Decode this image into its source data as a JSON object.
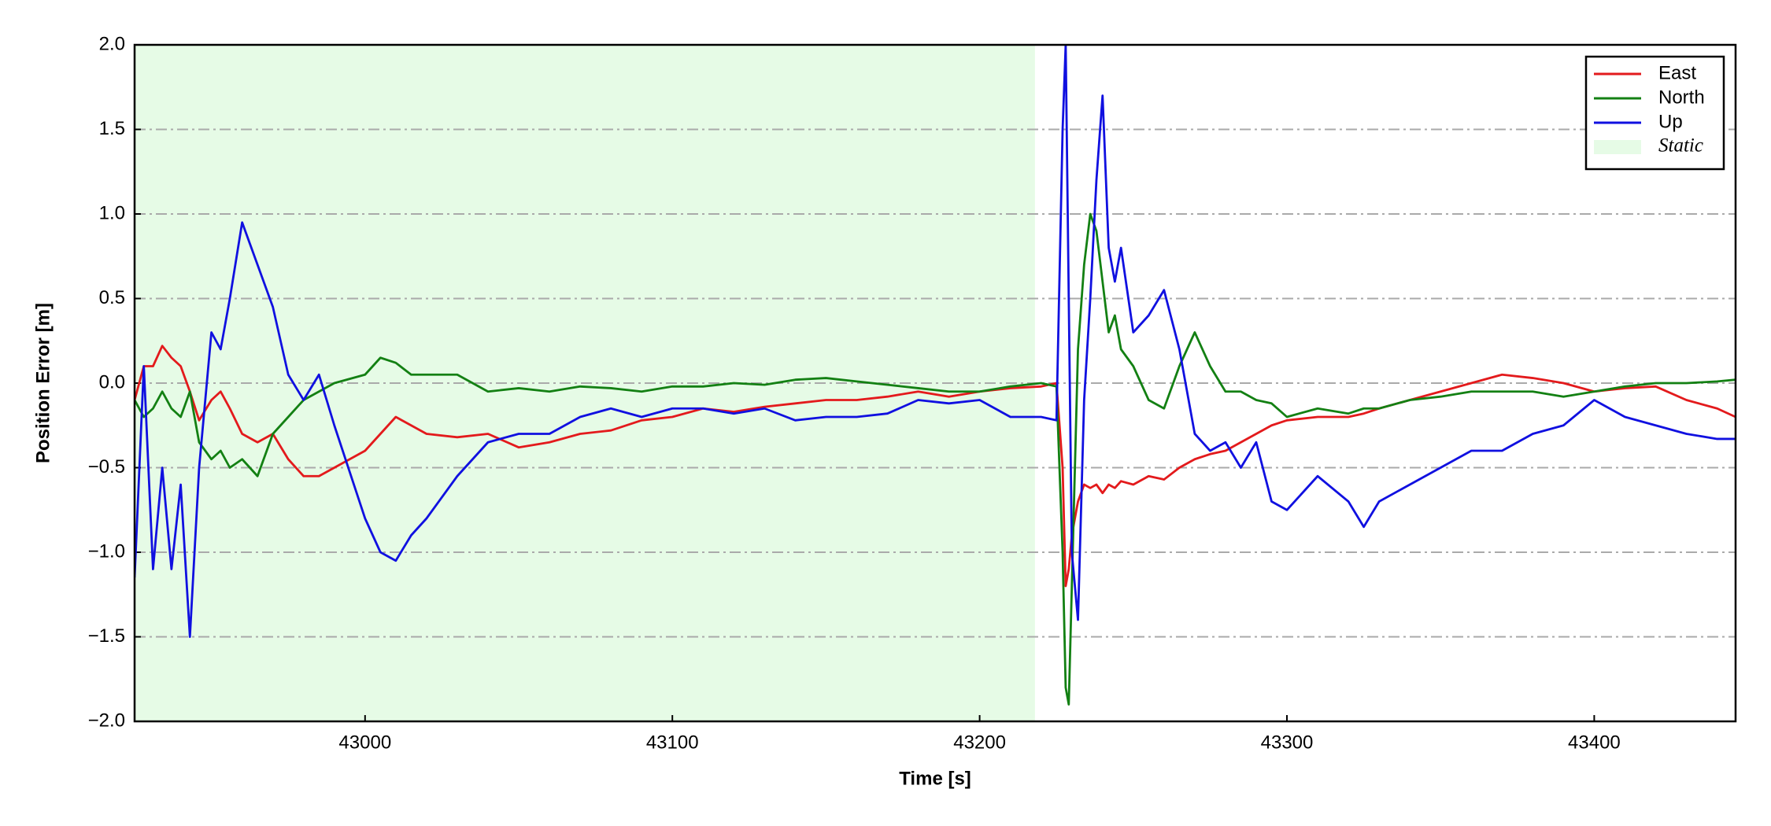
{
  "chart_data": {
    "type": "line",
    "xlabel": "Time [s]",
    "ylabel": "Position Error [m]",
    "xlim": [
      42925,
      43446
    ],
    "ylim": [
      -2.0,
      2.0
    ],
    "xticks": [
      43000,
      43100,
      43200,
      43300,
      43400
    ],
    "yticks": [
      {
        "value": -2.0,
        "label": "−2.0"
      },
      {
        "value": -1.5,
        "label": "−1.5"
      },
      {
        "value": -1.0,
        "label": "−1.0"
      },
      {
        "value": -0.5,
        "label": "−0.5"
      },
      {
        "value": 0.0,
        "label": "0.0"
      },
      {
        "value": 0.5,
        "label": "0.5"
      },
      {
        "value": 1.0,
        "label": "1.0"
      },
      {
        "value": 1.5,
        "label": "1.5"
      },
      {
        "value": 2.0,
        "label": "2.0"
      }
    ],
    "grid": true,
    "legend": "upper right",
    "shade": {
      "name": "Static",
      "color": "#e6fbe6",
      "x": [
        42925,
        43218
      ]
    },
    "x": [
      42925,
      42928,
      42931,
      42934,
      42937,
      42940,
      42943,
      42946,
      42950,
      42953,
      42956,
      42960,
      42965,
      42970,
      42975,
      42980,
      42985,
      42990,
      43000,
      43005,
      43010,
      43015,
      43020,
      43030,
      43040,
      43050,
      43060,
      43070,
      43080,
      43090,
      43100,
      43110,
      43120,
      43130,
      43140,
      43150,
      43160,
      43170,
      43180,
      43190,
      43200,
      43210,
      43220,
      43225,
      43227,
      43228,
      43229,
      43230,
      43232,
      43234,
      43236,
      43238,
      43240,
      43242,
      43244,
      43246,
      43250,
      43255,
      43260,
      43265,
      43270,
      43275,
      43280,
      43285,
      43290,
      43295,
      43300,
      43310,
      43320,
      43325,
      43330,
      43340,
      43350,
      43360,
      43370,
      43380,
      43390,
      43400,
      43410,
      43420,
      43430,
      43440,
      43446
    ],
    "series": [
      {
        "name": "East",
        "color": "#e31a1c",
        "values": [
          -0.1,
          0.1,
          0.1,
          0.22,
          0.15,
          0.1,
          -0.05,
          -0.22,
          -0.1,
          -0.05,
          -0.15,
          -0.3,
          -0.35,
          -0.3,
          -0.45,
          -0.55,
          -0.55,
          -0.5,
          -0.4,
          -0.3,
          -0.2,
          -0.25,
          -0.3,
          -0.32,
          -0.3,
          -0.38,
          -0.35,
          -0.3,
          -0.28,
          -0.22,
          -0.2,
          -0.15,
          -0.17,
          -0.14,
          -0.12,
          -0.1,
          -0.1,
          -0.08,
          -0.05,
          -0.08,
          -0.05,
          -0.03,
          -0.02,
          0,
          -0.5,
          -1.2,
          -1.1,
          -0.9,
          -0.7,
          -0.6,
          -0.62,
          -0.6,
          -0.65,
          -0.6,
          -0.62,
          -0.58,
          -0.6,
          -0.55,
          -0.57,
          -0.5,
          -0.45,
          -0.42,
          -0.4,
          -0.35,
          -0.3,
          -0.25,
          -0.22,
          -0.2,
          -0.2,
          -0.18,
          -0.15,
          -0.1,
          -0.05,
          0,
          0.05,
          0.03,
          0,
          -0.05,
          -0.03,
          -0.02,
          -0.1,
          -0.15,
          -0.2
        ]
      },
      {
        "name": "North",
        "color": "#138013",
        "values": [
          -0.1,
          -0.2,
          -0.15,
          -0.05,
          -0.15,
          -0.2,
          -0.05,
          -0.35,
          -0.45,
          -0.4,
          -0.5,
          -0.45,
          -0.55,
          -0.3,
          -0.2,
          -0.1,
          -0.05,
          0,
          0.05,
          0.15,
          0.12,
          0.05,
          0.05,
          0.05,
          -0.05,
          -0.03,
          -0.05,
          -0.02,
          -0.03,
          -0.05,
          -0.02,
          -0.02,
          0,
          -0.01,
          0.02,
          0.03,
          0.01,
          -0.01,
          -0.03,
          -0.05,
          -0.05,
          -0.02,
          0,
          -0.02,
          -1.0,
          -1.8,
          -1.9,
          -1.2,
          0.2,
          0.7,
          1.0,
          0.9,
          0.6,
          0.3,
          0.4,
          0.2,
          0.1,
          -0.1,
          -0.15,
          0.1,
          0.3,
          0.1,
          -0.05,
          -0.05,
          -0.1,
          -0.12,
          -0.2,
          -0.15,
          -0.18,
          -0.15,
          -0.15,
          -0.1,
          -0.08,
          -0.05,
          -0.05,
          -0.05,
          -0.08,
          -0.05,
          -0.02,
          0,
          0,
          0.01,
          0.02
        ]
      },
      {
        "name": "Up",
        "color": "#1010e0",
        "values": [
          -1.15,
          0.1,
          -1.1,
          -0.5,
          -1.1,
          -0.6,
          -1.5,
          -0.5,
          0.3,
          0.2,
          0.5,
          0.95,
          0.7,
          0.45,
          0.05,
          -0.1,
          0.05,
          -0.25,
          -0.8,
          -1.0,
          -1.05,
          -0.9,
          -0.8,
          -0.55,
          -0.35,
          -0.3,
          -0.3,
          -0.2,
          -0.15,
          -0.2,
          -0.15,
          -0.15,
          -0.18,
          -0.15,
          -0.22,
          -0.2,
          -0.2,
          -0.18,
          -0.1,
          -0.12,
          -0.1,
          -0.2,
          -0.2,
          -0.22,
          1.5,
          2.0,
          0.5,
          -1.0,
          -1.4,
          -0.1,
          0.5,
          1.2,
          1.7,
          0.8,
          0.6,
          0.8,
          0.3,
          0.4,
          0.55,
          0.2,
          -0.3,
          -0.4,
          -0.35,
          -0.5,
          -0.35,
          -0.7,
          -0.75,
          -0.55,
          -0.7,
          -0.85,
          -0.7,
          -0.6,
          -0.5,
          -0.4,
          -0.4,
          -0.3,
          -0.25,
          -0.1,
          -0.2,
          -0.25,
          -0.3,
          -0.33,
          -0.33
        ]
      }
    ]
  }
}
